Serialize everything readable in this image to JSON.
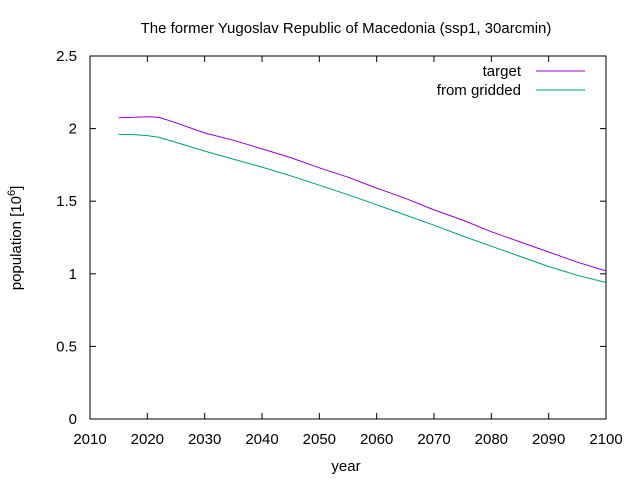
{
  "chart_data": {
    "type": "line",
    "title": "The former Yugoslav Republic of Macedonia (ssp1, 30arcmin)",
    "xlabel": "year",
    "ylabel_main": "population [10",
    "ylabel_exp": "6",
    "ylabel_close": "]",
    "xlim": [
      2010,
      2100
    ],
    "ylim": [
      0,
      2.5
    ],
    "xticks": [
      2010,
      2020,
      2030,
      2040,
      2050,
      2060,
      2070,
      2080,
      2090,
      2100
    ],
    "yticks": [
      0,
      0.5,
      1,
      1.5,
      2,
      2.5
    ],
    "xtick_labels": [
      "2010",
      "2020",
      "2030",
      "2040",
      "2050",
      "2060",
      "2070",
      "2080",
      "2090",
      "2100"
    ],
    "ytick_labels": [
      "0",
      "0.5",
      "1",
      "1.5",
      "2",
      "2.5"
    ],
    "legend_position": "top-right",
    "grid": false,
    "series": [
      {
        "name": "target",
        "color": "#9400d3",
        "x": [
          2015,
          2018,
          2020,
          2022,
          2025,
          2030,
          2035,
          2040,
          2045,
          2050,
          2055,
          2060,
          2065,
          2070,
          2075,
          2080,
          2085,
          2090,
          2095,
          2100
        ],
        "y": [
          2.075,
          2.078,
          2.082,
          2.078,
          2.04,
          1.97,
          1.92,
          1.86,
          1.8,
          1.73,
          1.665,
          1.59,
          1.52,
          1.44,
          1.37,
          1.29,
          1.22,
          1.15,
          1.08,
          1.02
        ]
      },
      {
        "name": "from gridded",
        "color": "#009e73",
        "x": [
          2015,
          2018,
          2020,
          2022,
          2025,
          2030,
          2035,
          2040,
          2045,
          2050,
          2055,
          2060,
          2065,
          2070,
          2075,
          2080,
          2085,
          2090,
          2095,
          2100
        ],
        "y": [
          1.96,
          1.958,
          1.952,
          1.94,
          1.905,
          1.845,
          1.79,
          1.735,
          1.675,
          1.61,
          1.545,
          1.475,
          1.405,
          1.335,
          1.26,
          1.19,
          1.12,
          1.05,
          0.99,
          0.94
        ]
      }
    ]
  }
}
